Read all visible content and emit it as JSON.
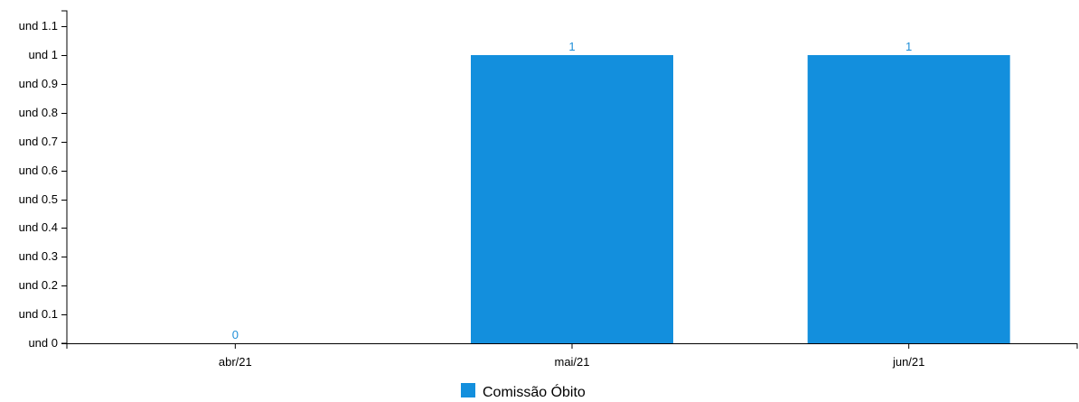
{
  "chart_data": {
    "type": "bar",
    "categories": [
      "abr/21",
      "mai/21",
      "jun/21"
    ],
    "series": [
      {
        "name": "Comissão Óbito",
        "values": [
          0,
          1,
          1
        ],
        "color": "#138fdd"
      }
    ],
    "data_labels": [
      "0",
      "1",
      "1"
    ],
    "y_ticks": [
      0,
      0.1,
      0.2,
      0.3,
      0.4,
      0.5,
      0.6,
      0.7,
      0.8,
      0.9,
      1,
      1.1
    ],
    "y_tick_labels": [
      "und 0",
      "und 0.1",
      "und 0.2",
      "und 0.3",
      "und 0.4",
      "und 0.5",
      "und 0.6",
      "und 0.7",
      "und 0.8",
      "und 0.9",
      "und 1",
      "und 1.1"
    ],
    "ylim": [
      0,
      1.1
    ],
    "grid": false,
    "legend_position": "bottom-center",
    "label_color": "#1f8fd8"
  }
}
